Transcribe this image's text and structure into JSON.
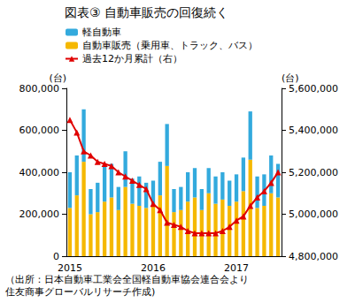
{
  "chart_data": {
    "type": "bar",
    "title": "図表③ 自動車販売の回復続く",
    "ylabel": "(台)",
    "y2label": "(台)",
    "source": [
      "（出所：日本自動車工業会全国軽自動車協会連合会より",
      "住友商事グローバルリサーチ作成)"
    ],
    "stacked": true,
    "grid": false,
    "legend": "top-left",
    "categories": [
      "2015",
      null,
      null,
      null,
      null,
      null,
      null,
      null,
      null,
      null,
      null,
      null,
      "2016",
      null,
      null,
      null,
      null,
      null,
      null,
      null,
      null,
      null,
      null,
      null,
      "2017",
      null,
      null,
      null,
      null,
      null,
      null
    ],
    "ylim": [
      0,
      800000
    ],
    "yticks": [
      0,
      {
        "value": 200000,
        "label": "200,000"
      },
      {
        "value": 400000,
        "label": "400,000"
      },
      {
        "value": 600000,
        "label": "600,000"
      },
      {
        "value": 800000,
        "label": "800,000"
      }
    ],
    "y2lim": [
      4800000,
      5600000
    ],
    "y2ticks": [
      {
        "value": 4800000,
        "label": "4,800,000"
      },
      {
        "value": 5000000,
        "label": "5,000,000"
      },
      {
        "value": 5200000,
        "label": "5,200,000"
      },
      {
        "value": 5400000,
        "label": "5,400,000"
      },
      {
        "value": 5600000,
        "label": "5,600,000"
      }
    ],
    "series": [
      {
        "name": "軽自動車",
        "type": "bar",
        "color": "#33aadd",
        "values": [
          170000,
          190000,
          250000,
          120000,
          140000,
          170000,
          160000,
          110000,
          170000,
          120000,
          140000,
          120000,
          120000,
          160000,
          200000,
          110000,
          110000,
          140000,
          140000,
          100000,
          120000,
          130000,
          130000,
          120000,
          130000,
          160000,
          230000,
          150000,
          150000,
          180000,
          160000
        ]
      },
      {
        "name": "自動車販売（乗用車、トラック、バス）",
        "type": "bar",
        "color": "#f5b800",
        "values": [
          230000,
          290000,
          450000,
          200000,
          210000,
          260000,
          280000,
          220000,
          330000,
          250000,
          240000,
          230000,
          240000,
          290000,
          430000,
          210000,
          220000,
          260000,
          280000,
          220000,
          300000,
          250000,
          270000,
          240000,
          260000,
          310000,
          460000,
          230000,
          240000,
          300000,
          280000
        ]
      },
      {
        "name": "過去12か月累計（右）",
        "type": "line",
        "axis": "y2",
        "color": "#e00000",
        "marker": "triangle",
        "values": [
          5450000,
          5390000,
          5300000,
          5280000,
          5250000,
          5240000,
          5230000,
          5200000,
          5180000,
          5160000,
          5140000,
          5120000,
          5050000,
          5020000,
          4960000,
          4950000,
          4940000,
          4920000,
          4910000,
          4910000,
          4910000,
          4910000,
          4920000,
          4940000,
          4970000,
          4990000,
          5040000,
          5080000,
          5110000,
          5150000,
          5200000
        ]
      }
    ]
  }
}
